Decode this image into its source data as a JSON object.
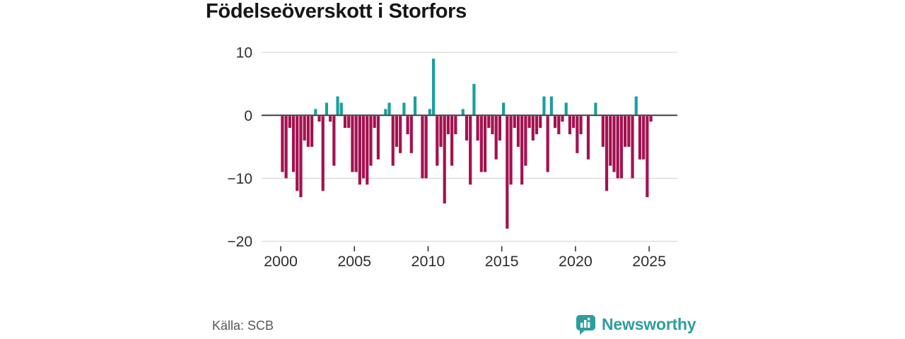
{
  "title": "Födelseöverskott i Storfors",
  "source": "Källa: SCB",
  "brand": {
    "name": "Newsworthy",
    "icon": "bar-chart-speech-bubble-icon"
  },
  "colors": {
    "positive": "#1a9f9e",
    "negative": "#a31150",
    "brand": "#2d9e9e",
    "zero_line": "#404040",
    "gridline": "#dadada",
    "axis_text": "#2e2e2e",
    "title_text": "#161616",
    "source_text": "#575757",
    "background": "#ffffff"
  },
  "chart_data": {
    "type": "bar",
    "title": "Födelseöverskott i Storfors",
    "xlabel": "",
    "ylabel": "",
    "period": "quarterly",
    "start_period": "2000 Q1",
    "end_period": "2025 Q1",
    "x_tick_years": [
      2000,
      2005,
      2010,
      2015,
      2020,
      2025
    ],
    "y_ticks": [
      10,
      0,
      -10,
      -20
    ],
    "ylim": [
      -20,
      10
    ],
    "grid": "horizontal",
    "legend": "none",
    "values": [
      -9,
      -10,
      -2,
      -9,
      -12,
      -13,
      -4,
      -5,
      -5,
      1,
      -1,
      -12,
      2,
      -1,
      -8,
      3,
      2,
      -2,
      -2,
      -9,
      -9,
      -11,
      -10,
      -11,
      -8,
      -2,
      -7,
      0,
      1,
      2,
      -8,
      -5,
      -6,
      2,
      -3,
      -6,
      3,
      0,
      -10,
      -10,
      1,
      9,
      -8,
      -5,
      -14,
      -3,
      -8,
      -3,
      0,
      1,
      -4,
      -11,
      5,
      -4,
      -9,
      -9,
      -2,
      -3,
      -7,
      -4,
      2,
      -18,
      -11,
      -2,
      -5,
      -11,
      -8,
      -2,
      -4,
      -3,
      -2,
      3,
      -9,
      3,
      -2,
      -3,
      -1,
      2,
      -3,
      -2,
      -6,
      -3,
      0,
      -7,
      0,
      2,
      0,
      -5,
      -12,
      -8,
      -9,
      -10,
      -10,
      -5,
      -5,
      -10,
      3,
      -7,
      -7,
      -13,
      -1
    ]
  }
}
